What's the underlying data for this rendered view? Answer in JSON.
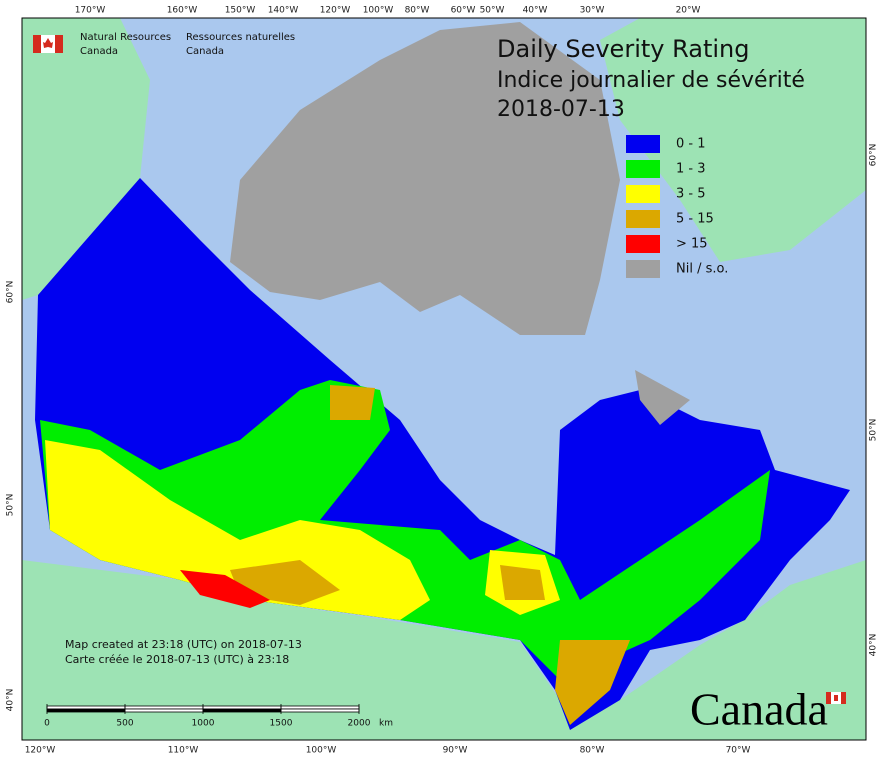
{
  "header": {
    "agency_en": "Natural Resources",
    "agency_en_2": "Canada",
    "agency_fr": "Ressources naturelles",
    "agency_fr_2": "Canada"
  },
  "title": {
    "line1": "Daily Severity Rating",
    "line2": "Indice journalier de sévérité",
    "date": "2018-07-13"
  },
  "legend": [
    {
      "label": "0 - 1",
      "color": "#0000f0"
    },
    {
      "label": "1 - 3",
      "color": "#00ee00"
    },
    {
      "label": "3 - 5",
      "color": "#ffff00"
    },
    {
      "label": "5 - 15",
      "color": "#dba800"
    },
    {
      "label": "> 15",
      "color": "#ff0000"
    },
    {
      "label": "Nil / s.o.",
      "color": "#a0a0a0"
    }
  ],
  "graticule": {
    "top": [
      "170°W",
      "160°W",
      "150°W",
      "140°W",
      "120°W",
      "100°W",
      "80°W",
      "60°W",
      "50°W",
      "40°W",
      "30°W",
      "20°W"
    ],
    "bottom": [
      "120°W",
      "110°W",
      "100°W",
      "90°W",
      "80°W",
      "70°W"
    ],
    "left": [
      "60°N",
      "50°N",
      "40°N"
    ],
    "right": [
      "60°N",
      "50°N",
      "40°N"
    ]
  },
  "scale": {
    "ticks": [
      0,
      500,
      1000,
      1500,
      2000
    ],
    "unit": "km"
  },
  "credits": [
    "Map created at 23:18 (UTC) on 2018-07-13",
    "Carte créée le 2018-07-13 (UTC) à 23:18"
  ],
  "wordmark": "Canada"
}
